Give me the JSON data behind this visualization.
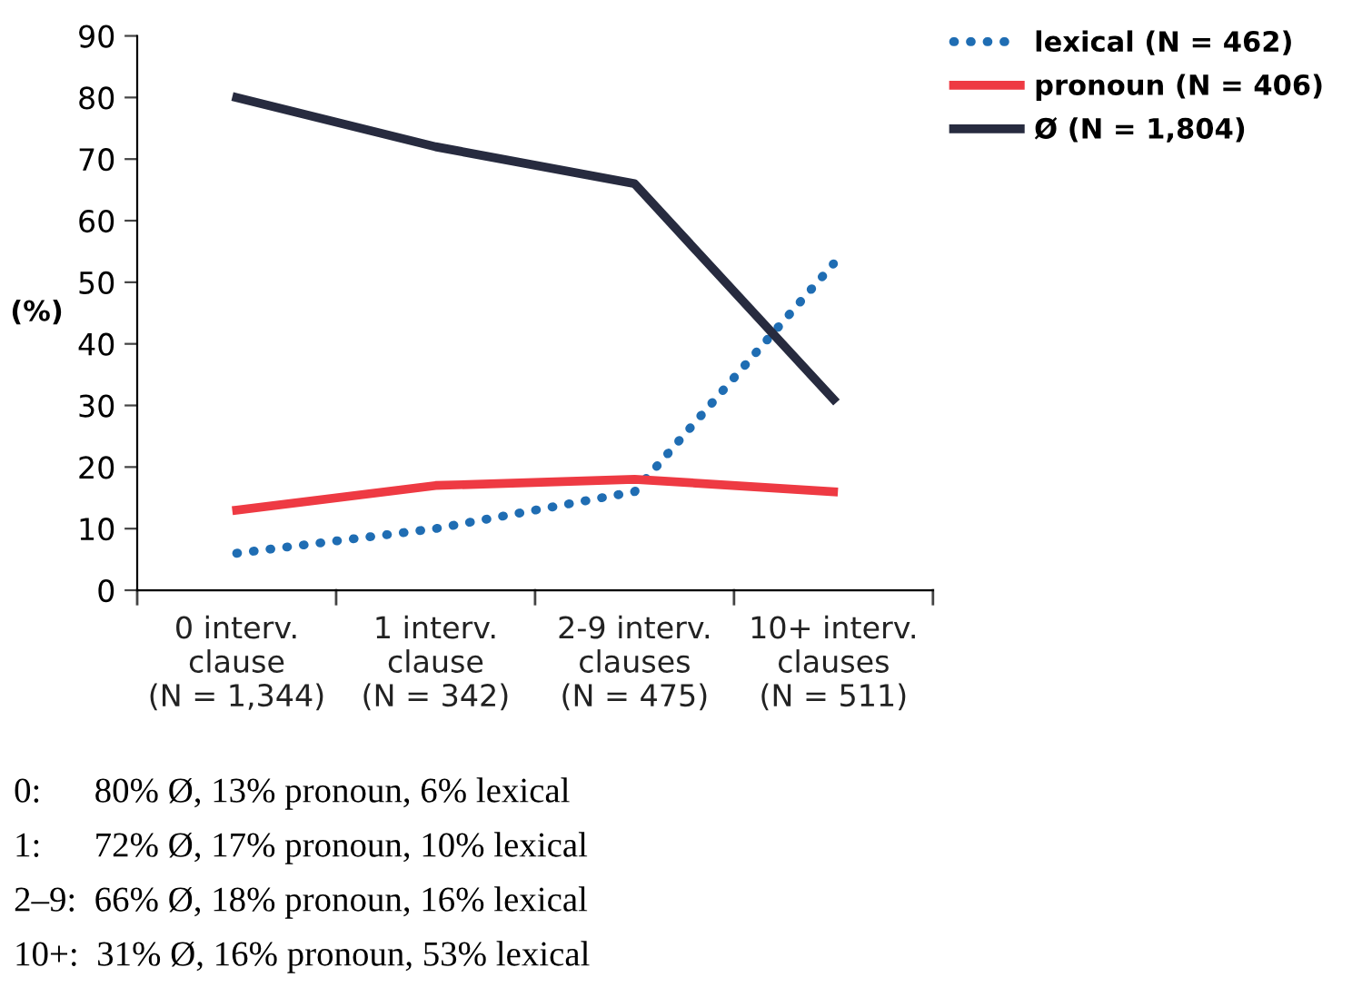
{
  "chart_data": {
    "type": "line",
    "ylabel": "(%)",
    "categories": [
      "0 interv.\nclause\n(N = 1,344)",
      "1 interv.\nclause\n(N = 342)",
      "2-9 interv.\nclauses\n(N = 475)",
      "10+ interv.\nclauses\n(N = 511)"
    ],
    "series": [
      {
        "name": "lexical (N = 462)",
        "color": "#1f6db3",
        "line_style": "dotted",
        "values": [
          6,
          10,
          16,
          53
        ]
      },
      {
        "name": "pronoun (N = 406)",
        "color": "#ee3a43",
        "line_style": "solid",
        "values": [
          13,
          17,
          18,
          16
        ]
      },
      {
        "name": "Ø (N = 1,804)",
        "color": "#272b3f",
        "line_style": "solid",
        "values": [
          80,
          72,
          66,
          31
        ]
      }
    ],
    "ylim": [
      0,
      90
    ],
    "yticks": [
      0,
      10,
      20,
      30,
      40,
      50,
      60,
      70,
      80,
      90
    ],
    "grid": false,
    "legend": "top right",
    "marker": "none",
    "annotations": [
      "0:      80% Ø, 13% pronoun, 6% lexical",
      "1:      72% Ø, 17% pronoun, 10% lexical",
      "2–9:  66% Ø, 18% pronoun, 16% lexical",
      "10+:  31% Ø, 16% pronoun, 53% lexical"
    ]
  }
}
